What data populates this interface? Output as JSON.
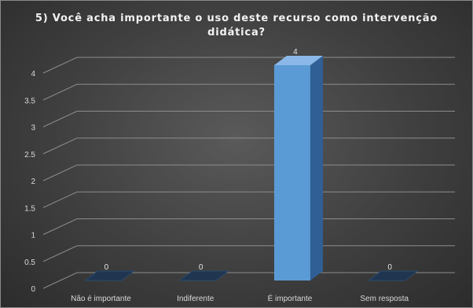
{
  "chart_data": {
    "type": "bar",
    "title_line1": "5) Você acha importante o uso deste recurso como intervenção",
    "title_line2": "didática?",
    "categories": [
      "Não é importante",
      "Indiferente",
      "É importante",
      "Sem resposta"
    ],
    "values": [
      0,
      0,
      4,
      0
    ],
    "data_labels": [
      "0",
      "0",
      "4",
      "0"
    ],
    "yticks": [
      "0",
      "0.5",
      "1",
      "1.5",
      "2",
      "2.5",
      "3",
      "3.5",
      "4"
    ],
    "ylim": [
      0,
      4
    ],
    "grid": true,
    "legend": "none",
    "three_d": true,
    "colors": {
      "bar_front": "#5b9bd5",
      "bar_front_light": "#6fa8e0",
      "bar_side": "#2f5f94",
      "bar_top": "#8bb8e8",
      "floor_bar": "#1f3550",
      "gridline": "#8c8c8c",
      "background": "#404040",
      "text": "#d9d9d9"
    }
  }
}
